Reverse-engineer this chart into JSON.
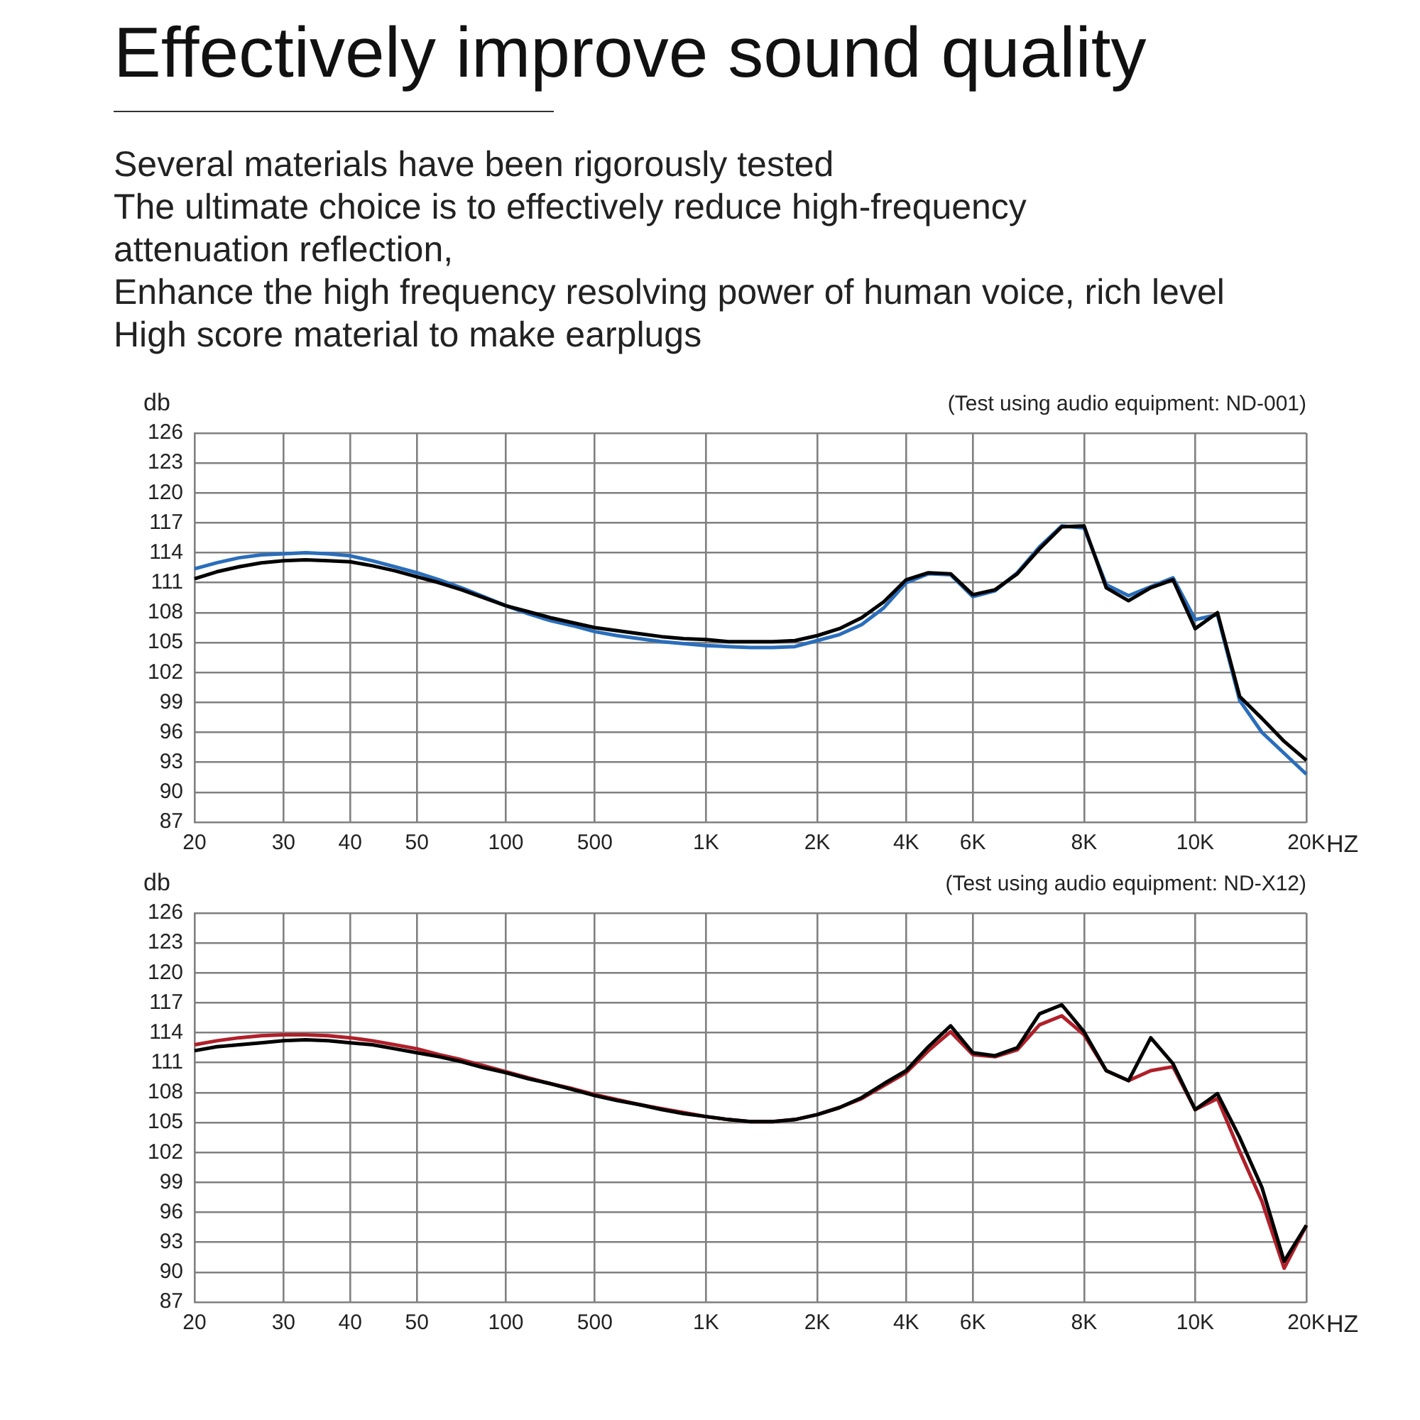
{
  "chart_data": [
    {
      "type": "line",
      "title": "Effectively improve sound quality",
      "subtitle": "Several materials have been rigorously tested\nThe ultimate choice is to effectively reduce high-frequency\nattenuation reflection,\nEnhance the high frequency resolving power of human voice, rich level\nHigh score material to make earplugs",
      "ylabel": "db",
      "xlabel": "HZ",
      "annotations": [
        "(Test using audio equipment: ND-001)"
      ],
      "categories": [
        "20",
        null,
        null,
        null,
        "30",
        null,
        null,
        "40",
        null,
        null,
        "50",
        null,
        null,
        null,
        "100",
        null,
        null,
        null,
        "500",
        null,
        null,
        null,
        null,
        "1K",
        null,
        null,
        null,
        null,
        "2K",
        null,
        null,
        null,
        "4K",
        null,
        null,
        "6K",
        null,
        null,
        null,
        null,
        "8K",
        null,
        null,
        null,
        null,
        "10K",
        null,
        null,
        null,
        null,
        "20K"
      ],
      "series": [
        {
          "color": "#000000",
          "values": [
            111.4,
            112.1,
            112.6,
            113.0,
            113.2,
            113.3,
            113.2,
            113.1,
            112.7,
            112.2,
            111.6,
            111.0,
            110.3,
            109.5,
            108.7,
            108.1,
            107.5,
            107.0,
            106.5,
            106.2,
            105.9,
            105.6,
            105.4,
            105.3,
            105.1,
            105.1,
            105.1,
            105.2,
            105.7,
            106.4,
            107.5,
            109.1,
            111.3,
            112.0,
            111.9,
            109.8,
            110.3,
            111.9,
            114.4,
            116.6,
            116.7,
            110.5,
            109.2,
            110.5,
            111.3,
            106.4,
            108.0,
            99.6,
            97.4,
            95.1,
            93.2
          ]
        },
        {
          "color": "#2a6ebb",
          "values": [
            112.4,
            113.0,
            113.5,
            113.8,
            113.9,
            114.0,
            113.9,
            113.7,
            113.2,
            112.6,
            112.0,
            111.3,
            110.5,
            109.6,
            108.7,
            107.9,
            107.2,
            106.7,
            106.1,
            105.7,
            105.4,
            105.1,
            104.9,
            104.7,
            104.6,
            104.5,
            104.5,
            104.6,
            105.2,
            105.8,
            106.8,
            108.5,
            111.0,
            111.9,
            111.8,
            109.6,
            110.2,
            112.0,
            114.6,
            116.7,
            116.5,
            110.8,
            109.7,
            110.6,
            111.5,
            107.3,
            107.8,
            99.2,
            96.0,
            93.9,
            91.8
          ]
        }
      ],
      "ylim": [
        87,
        126
      ],
      "yticks": [
        87,
        90,
        93,
        96,
        99,
        102,
        105,
        108,
        111,
        114,
        117,
        120,
        123,
        126
      ],
      "grid": true,
      "marker": "none"
    },
    {
      "type": "line",
      "ylabel": "db",
      "xlabel": "HZ",
      "annotations": [
        "(Test using audio equipment: ND-X12)"
      ],
      "categories": [
        "20",
        null,
        null,
        null,
        "30",
        null,
        null,
        "40",
        null,
        null,
        "50",
        null,
        null,
        null,
        "100",
        null,
        null,
        null,
        "500",
        null,
        null,
        null,
        null,
        "1K",
        null,
        null,
        null,
        null,
        "2K",
        null,
        null,
        null,
        "4K",
        null,
        null,
        "6K",
        null,
        null,
        null,
        null,
        "8K",
        null,
        null,
        null,
        null,
        "10K",
        null,
        null,
        null,
        null,
        "20K"
      ],
      "series": [
        {
          "color": "#000000",
          "values": [
            112.2,
            112.6,
            112.8,
            113.0,
            113.2,
            113.3,
            113.2,
            113.0,
            112.8,
            112.4,
            112.0,
            111.6,
            111.1,
            110.5,
            110.0,
            109.4,
            108.9,
            108.3,
            107.7,
            107.2,
            106.8,
            106.3,
            105.9,
            105.6,
            105.3,
            105.1,
            105.1,
            105.3,
            105.8,
            106.5,
            107.5,
            108.9,
            110.2,
            112.6,
            114.7,
            112.0,
            111.7,
            112.5,
            115.9,
            116.8,
            114.1,
            110.2,
            109.2,
            113.5,
            110.9,
            106.3,
            107.9,
            103.5,
            98.5,
            91.1,
            94.7
          ]
        },
        {
          "color": "#b0202a",
          "values": [
            112.8,
            113.2,
            113.5,
            113.7,
            113.8,
            113.8,
            113.7,
            113.5,
            113.2,
            112.8,
            112.4,
            111.8,
            111.3,
            110.7,
            110.1,
            109.5,
            108.9,
            108.4,
            107.8,
            107.3,
            106.8,
            106.4,
            106.0,
            105.6,
            105.3,
            105.1,
            105.1,
            105.3,
            105.8,
            106.5,
            107.4,
            108.7,
            110.0,
            112.2,
            114.1,
            111.8,
            111.6,
            112.3,
            114.8,
            115.7,
            113.8,
            110.2,
            109.2,
            110.2,
            110.6,
            106.3,
            107.4,
            102.1,
            97.1,
            90.4,
            94.7
          ]
        }
      ],
      "ylim": [
        87,
        126
      ],
      "yticks": [
        87,
        90,
        93,
        96,
        99,
        102,
        105,
        108,
        111,
        114,
        117,
        120,
        123,
        126
      ],
      "grid": true,
      "marker": "none"
    }
  ]
}
